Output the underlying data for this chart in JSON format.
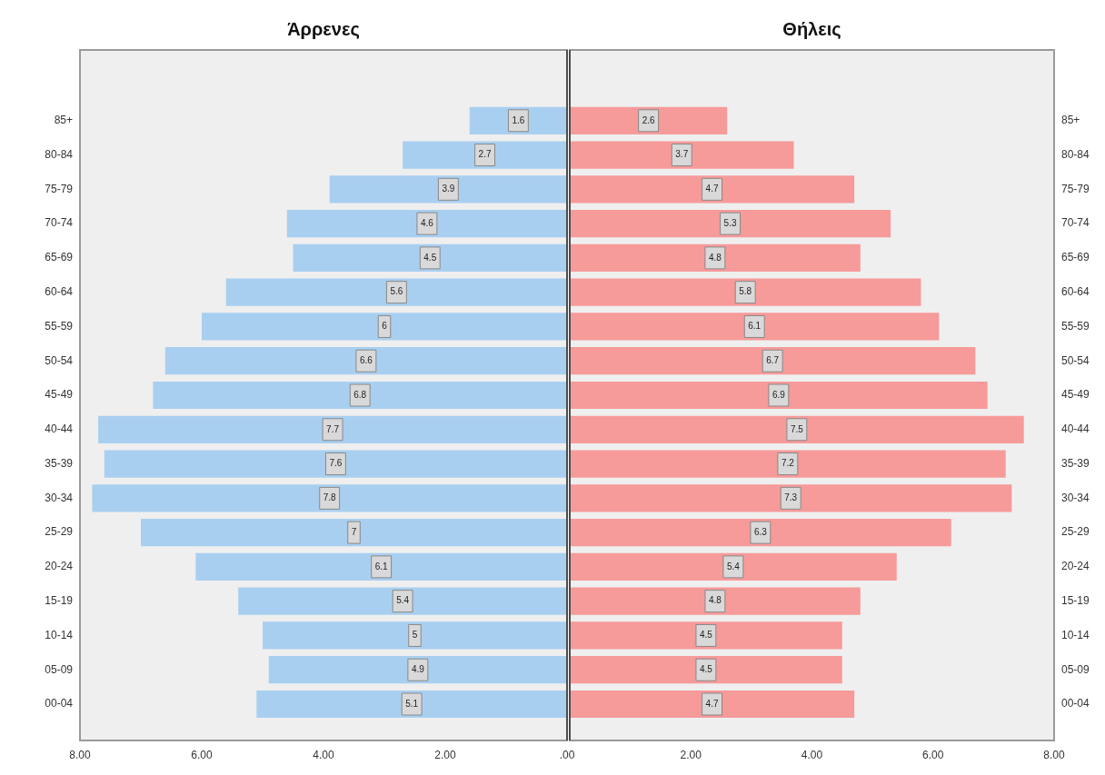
{
  "chart_data": [
    {
      "type": "bar",
      "orientation": "horizontal",
      "title": "Άρρενες",
      "categories": [
        "85+",
        "80-84",
        "75-79",
        "70-74",
        "65-69",
        "60-64",
        "55-59",
        "50-54",
        "45-49",
        "40-44",
        "35-39",
        "30-34",
        "25-29",
        "20-24",
        "15-19",
        "10-14",
        "05-09",
        "00-04"
      ],
      "series": [
        {
          "color": "#a9cff0",
          "values": [
            1.6,
            2.7,
            3.9,
            4.6,
            4.5,
            5.6,
            6.0,
            6.6,
            6.8,
            7.7,
            7.6,
            7.8,
            7.0,
            6.1,
            5.4,
            5.0,
            4.9,
            5.1
          ]
        }
      ],
      "xlim": [
        8,
        0
      ],
      "xticks": [
        {
          "value": 8,
          "label": "8.00"
        },
        {
          "value": 6,
          "label": "6.00"
        },
        {
          "value": 4,
          "label": "4.00"
        },
        {
          "value": 2,
          "label": "2.00"
        },
        {
          "value": 0,
          "label": ".00"
        }
      ],
      "data_labels": true,
      "grid": false,
      "legend": false
    },
    {
      "type": "bar",
      "orientation": "horizontal",
      "title": "Θήλεις",
      "categories": [
        "85+",
        "80-84",
        "75-79",
        "70-74",
        "65-69",
        "60-64",
        "55-59",
        "50-54",
        "45-49",
        "40-44",
        "35-39",
        "30-34",
        "25-29",
        "20-24",
        "15-19",
        "10-14",
        "05-09",
        "00-04"
      ],
      "series": [
        {
          "color": "#f79a9a",
          "values": [
            2.6,
            3.7,
            4.7,
            5.3,
            4.8,
            5.8,
            6.1,
            6.7,
            6.9,
            7.5,
            7.2,
            7.3,
            6.3,
            5.4,
            4.8,
            4.5,
            4.5,
            4.7
          ]
        }
      ],
      "xlim": [
        0,
        8
      ],
      "xticks": [
        {
          "value": 0,
          "label": null
        },
        {
          "value": 2,
          "label": "2.00"
        },
        {
          "value": 4,
          "label": "4.00"
        },
        {
          "value": 6,
          "label": "6.00"
        },
        {
          "value": 8,
          "label": "8.00"
        }
      ],
      "data_labels": true,
      "grid": false,
      "legend": false
    }
  ]
}
